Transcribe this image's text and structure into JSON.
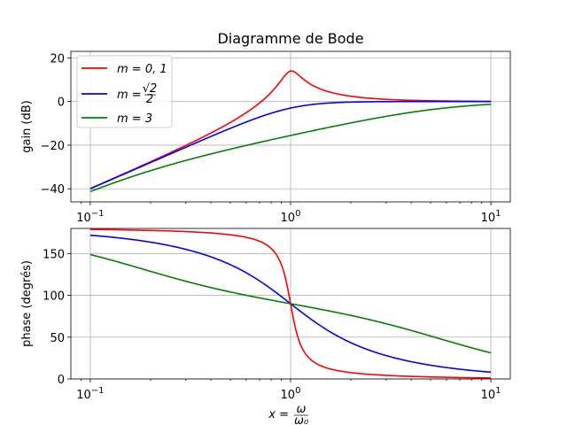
{
  "chart_data": [
    {
      "type": "line",
      "title": "Diagramme de Bode",
      "ylabel": "gain (dB)",
      "xlabel": "",
      "xscale": "log",
      "xlim": [
        0.08,
        12.5
      ],
      "ylim": [
        -46,
        23
      ],
      "yticks": [
        -40,
        -20,
        0,
        20
      ],
      "ytick_labels": [
        "−40",
        "−20",
        "0",
        "20"
      ],
      "xticks": [
        0.1,
        1,
        10
      ],
      "xtick_labels": [
        [
          "10",
          "−1"
        ],
        [
          "10",
          "0"
        ],
        [
          "10",
          "1"
        ]
      ],
      "grid": true,
      "legend": "top-left",
      "series": [
        {
          "name": "m = 0, 1",
          "color": "#ff0000",
          "m": 0.1
        },
        {
          "name": "m = √2/2",
          "color": "#0000ff",
          "m": 0.7071
        },
        {
          "name": "m = 3",
          "color": "#008000",
          "m": 3
        }
      ],
      "legend_labels": [
        {
          "text": "m = 0, 1"
        },
        {
          "prefix": "m =",
          "num": "√2",
          "den": "2"
        },
        {
          "text": "m = 3"
        }
      ],
      "x_range": [
        0.1,
        10
      ]
    },
    {
      "type": "line",
      "title": "",
      "ylabel": "phase (degrés)",
      "xscale": "log",
      "xlim": [
        0.08,
        12.5
      ],
      "ylim": [
        0,
        180
      ],
      "yticks": [
        0,
        50,
        100,
        150
      ],
      "ytick_labels": [
        "0",
        "50",
        "100",
        "150"
      ],
      "xticks": [
        0.1,
        1,
        10
      ],
      "xtick_labels": [
        [
          "10",
          "−1"
        ],
        [
          "10",
          "0"
        ],
        [
          "10",
          "1"
        ]
      ],
      "xlabel_parts": {
        "lhs": "x =",
        "num": "ω",
        "den": "ω₀"
      },
      "grid": true,
      "series": [
        {
          "color": "#ff0000",
          "m": 0.1
        },
        {
          "color": "#0000ff",
          "m": 0.7071
        },
        {
          "color": "#008000",
          "m": 3
        }
      ],
      "x_range": [
        0.1,
        10
      ]
    }
  ]
}
